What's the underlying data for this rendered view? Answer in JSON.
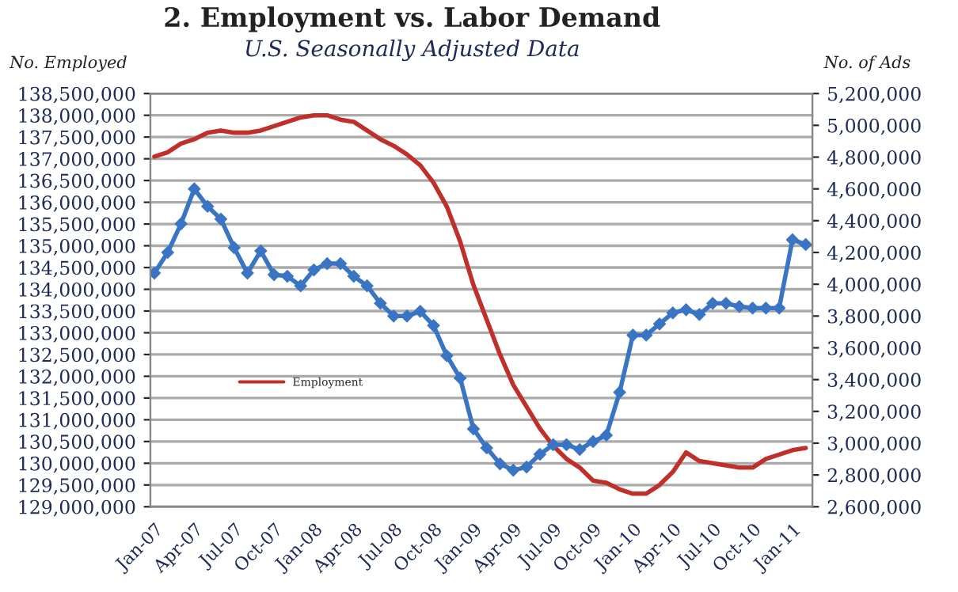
{
  "chart_data": {
    "type": "line",
    "title": "2. Employment vs. Labor Demand",
    "subtitle": "U.S. Seasonally Adjusted Data",
    "ylabel": "No. Employed",
    "y2label": "No. of Ads",
    "categories": [
      "Jan-07",
      null,
      null,
      "Apr-07",
      null,
      null,
      "Jul-07",
      null,
      null,
      "Oct-07",
      null,
      null,
      "Jan-08",
      null,
      null,
      "Apr-08",
      null,
      null,
      "Jul-08",
      null,
      null,
      "Oct-08",
      null,
      null,
      "Jan-09",
      null,
      null,
      "Apr-09",
      null,
      null,
      "Jul-09",
      null,
      null,
      "Oct-09",
      null,
      null,
      "Jan-10",
      null,
      null,
      "Apr-10",
      null,
      null,
      "Jul-10",
      null,
      null,
      "Oct-10",
      null,
      null,
      "Jan-11",
      null
    ],
    "series": [
      {
        "name": "Employment",
        "color": "#c0302b",
        "marker": "none",
        "values": [
          137050000,
          137150000,
          137350000,
          137450000,
          137600000,
          137650000,
          137600000,
          137600000,
          137650000,
          137750000,
          137850000,
          137950000,
          138000000,
          138000000,
          137900000,
          137850000,
          137650000,
          137450000,
          137300000,
          137100000,
          136850000,
          136450000,
          135900000,
          135100000,
          134100000,
          133300000,
          132500000,
          131800000,
          131300000,
          130800000,
          130400000,
          130100000,
          129900000,
          129600000,
          129550000,
          129400000,
          129300000,
          129300000,
          129500000,
          129800000,
          130250000,
          130050000,
          130000000,
          129950000,
          129900000,
          129900000,
          130100000,
          130200000,
          130300000,
          130350000
        ]
      },
      {
        "color": "#3a75c4",
        "marker": "diamond",
        "axis": "y2",
        "values": [
          4070000,
          4200000,
          4380000,
          4600000,
          4490000,
          4410000,
          4230000,
          4070000,
          4210000,
          4060000,
          4050000,
          3990000,
          4090000,
          4130000,
          4130000,
          4050000,
          3990000,
          3880000,
          3800000,
          3800000,
          3830000,
          3740000,
          3550000,
          3410000,
          3090000,
          2970000,
          2870000,
          2830000,
          2850000,
          2930000,
          2990000,
          2990000,
          2960000,
          3010000,
          3050000,
          3320000,
          3680000,
          3680000,
          3750000,
          3820000,
          3840000,
          3810000,
          3880000,
          3880000,
          3860000,
          3850000,
          3850000,
          3850000,
          4280000,
          4250000
        ]
      }
    ],
    "ylim": [
      129000000,
      138500000
    ],
    "yticks": [
      {
        "value": 129000000,
        "label": "129,000,000"
      },
      {
        "value": 129500000,
        "label": "129,500,000"
      },
      {
        "value": 130000000,
        "label": "130,000,000"
      },
      {
        "value": 130500000,
        "label": "130,500,000"
      },
      {
        "value": 131000000,
        "label": "131,000,000"
      },
      {
        "value": 131500000,
        "label": "131,500,000"
      },
      {
        "value": 132000000,
        "label": "132,000,000"
      },
      {
        "value": 132500000,
        "label": "132,500,000"
      },
      {
        "value": 133000000,
        "label": "133,000,000"
      },
      {
        "value": 133500000,
        "label": "133,500,000"
      },
      {
        "value": 134000000,
        "label": "134,000,000"
      },
      {
        "value": 134500000,
        "label": "134,500,000"
      },
      {
        "value": 135000000,
        "label": "135,000,000"
      },
      {
        "value": 135500000,
        "label": "135,500,000"
      },
      {
        "value": 136000000,
        "label": "136,000,000"
      },
      {
        "value": 136500000,
        "label": "136,500,000"
      },
      {
        "value": 137000000,
        "label": "137,000,000"
      },
      {
        "value": 137500000,
        "label": "137,500,000"
      },
      {
        "value": 138000000,
        "label": "138,000,000"
      },
      {
        "value": 138500000,
        "label": "138,500,000"
      }
    ],
    "y2lim": [
      2600000,
      5200000
    ],
    "y2ticks": [
      {
        "value": 2600000,
        "label": "2,600,000"
      },
      {
        "value": 2800000,
        "label": "2,800,000"
      },
      {
        "value": 3000000,
        "label": "3,000,000"
      },
      {
        "value": 3200000,
        "label": "3,200,000"
      },
      {
        "value": 3400000,
        "label": "3,400,000"
      },
      {
        "value": 3600000,
        "label": "3,600,000"
      },
      {
        "value": 3800000,
        "label": "3,800,000"
      },
      {
        "value": 4000000,
        "label": "4,000,000"
      },
      {
        "value": 4200000,
        "label": "4,200,000"
      },
      {
        "value": 4400000,
        "label": "4,400,000"
      },
      {
        "value": 4600000,
        "label": "4,600,000"
      },
      {
        "value": 4800000,
        "label": "4,800,000"
      },
      {
        "value": 5000000,
        "label": "5,000,000"
      },
      {
        "value": 5200000,
        "label": "5,200,000"
      }
    ],
    "grid": "y",
    "legend": "center left",
    "line_style": "solid"
  }
}
